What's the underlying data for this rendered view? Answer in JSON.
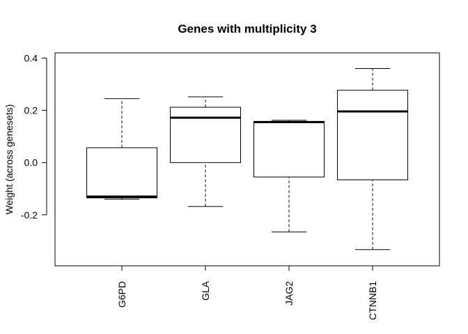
{
  "chart_data": {
    "type": "box",
    "title": "Genes with multiplicity 3",
    "xlabel": "",
    "ylabel": "Weight (across genesets)",
    "ylim": [
      -0.395,
      0.42
    ],
    "yticks": [
      -0.2,
      0.0,
      0.2,
      0.4
    ],
    "ytick_labels": [
      "-0.2",
      "0.0",
      "0.2",
      "0.4"
    ],
    "grid": false,
    "categories": [
      "G6PD",
      "GLA",
      "JAG2",
      "CTNNB1"
    ],
    "boxes": [
      {
        "label": "G6PD",
        "whisker_low": -0.14,
        "q1": -0.135,
        "median": -0.13,
        "q3": 0.057,
        "whisker_high": 0.245
      },
      {
        "label": "GLA",
        "whisker_low": -0.168,
        "q1": 0.0,
        "median": 0.172,
        "q3": 0.212,
        "whisker_high": 0.252
      },
      {
        "label": "JAG2",
        "whisker_low": -0.265,
        "q1": -0.055,
        "median": 0.155,
        "q3": 0.158,
        "whisker_high": 0.162
      },
      {
        "label": "CTNNB1",
        "whisker_low": -0.333,
        "q1": -0.066,
        "median": 0.196,
        "q3": 0.277,
        "whisker_high": 0.36
      }
    ],
    "colors": {
      "box_fill": "#ffffff",
      "line": "#000000"
    }
  }
}
